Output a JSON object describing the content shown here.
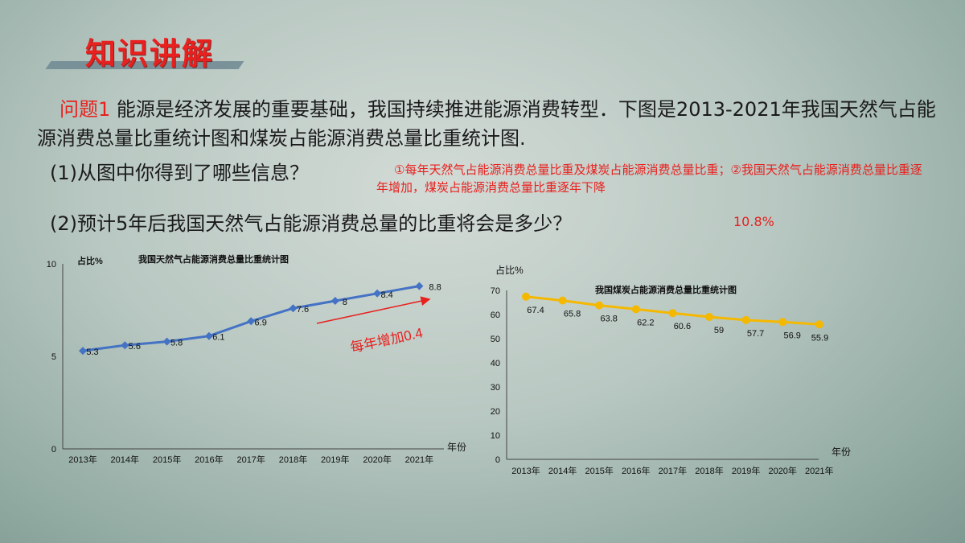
{
  "header": {
    "title": "知识讲解"
  },
  "question": {
    "label": "问题1",
    "text": "能源是经济发展的重要基础，我国持续推进能源消费转型．下图是2013-2021年我国天然气占能源消费总量比重统计图和煤炭占能源消费总量比重统计图."
  },
  "sub_q1": "(1)从图中你得到了哪些信息？",
  "answer1": "①每年天然气占能源消费总量比重及煤炭占能源消费总量比重；②我国天然气占能源消费总量比重逐年增加，煤炭占能源消费总量比重逐年下降",
  "sub_q2": "(2)预计5年后我国天然气占能源消费总量的比重将会是多少？",
  "answer2": "10.8%",
  "colors": {
    "accent": "#e8201e",
    "gas_line": "#4472c4",
    "coal_line": "#f5b800"
  },
  "chart_data": [
    {
      "type": "line",
      "title": "我国天然气占能源消费总量比重统计图",
      "ylabel": "占比%",
      "xlabel": "年份",
      "ylim": [
        0,
        10
      ],
      "yticks": [
        0,
        5,
        10
      ],
      "categories": [
        "2013年",
        "2014年",
        "2015年",
        "2016年",
        "2017年",
        "2018年",
        "2019年",
        "2020年",
        "2021年"
      ],
      "series": [
        {
          "values": [
            5.3,
            5.6,
            5.8,
            6.1,
            6.9,
            7.6,
            8,
            8.4,
            8.8
          ]
        }
      ],
      "annotation": "每年增加0.4"
    },
    {
      "type": "line",
      "title": "我国煤炭占能源消费总量比重统计图",
      "ylabel": "占比%",
      "xlabel": "年份",
      "ylim": [
        0,
        70
      ],
      "yticks": [
        0,
        10,
        20,
        30,
        40,
        50,
        60,
        70
      ],
      "categories": [
        "2013年",
        "2014年",
        "2015年",
        "2016年",
        "2017年",
        "2018年",
        "2019年",
        "2020年",
        "2021年"
      ],
      "series": [
        {
          "values": [
            67.4,
            65.8,
            63.8,
            62.2,
            60.6,
            59,
            57.7,
            56.9,
            55.9
          ]
        }
      ]
    }
  ]
}
